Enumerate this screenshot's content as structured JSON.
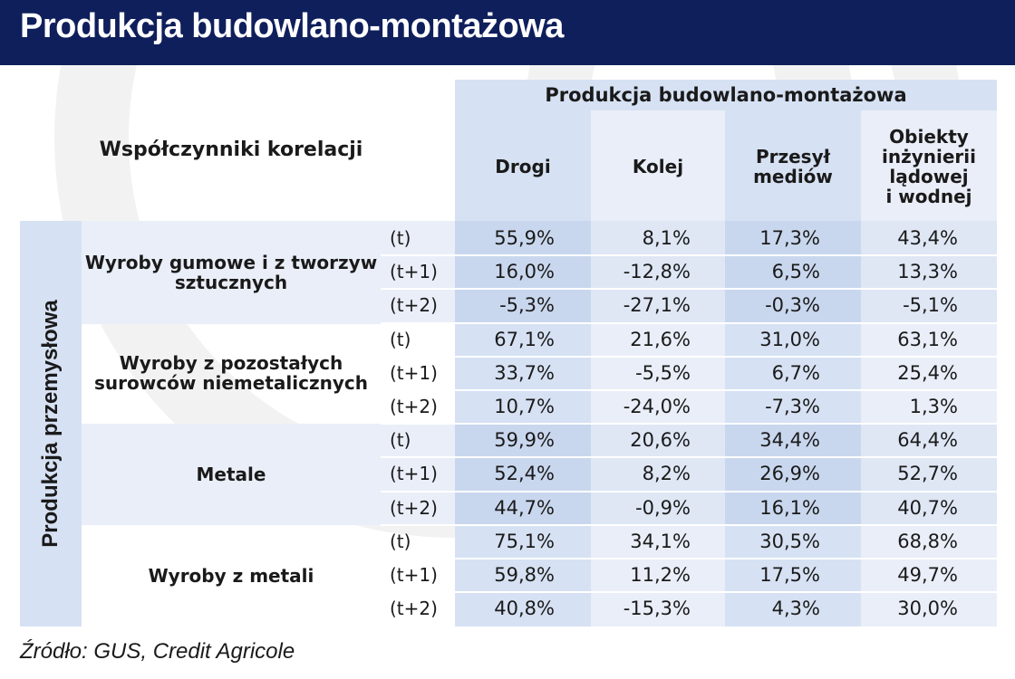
{
  "title": "Produkcja budowlano-montażowa",
  "corner_label": "Współczynniki korelacji",
  "column_group": "Produkcja budowlano-montażowa",
  "columns": {
    "c1": "Drogi",
    "c2": "Kolej",
    "c3a": "Przesył",
    "c3b": "mediów",
    "c4a": "Obiekty",
    "c4b": "inżynierii",
    "c4c": "lądowej",
    "c4d": "i wodnej"
  },
  "row_group": "Produkcja przemysłowa",
  "groups": {
    "g1a": "Wyroby gumowe i z tworzyw",
    "g1b": "sztucznych",
    "g2a": "Wyroby z pozostałych",
    "g2b": "surowców niemetalicznych",
    "g3": "Metale",
    "g4": "Wyroby z metali"
  },
  "periods": [
    "(t)",
    "(t+1)",
    "(t+2)",
    "(t)",
    "(t+1)",
    "(t+2)",
    "(t)",
    "(t+1)",
    "(t+2)",
    "(t)",
    "(t+1)",
    "(t+2)"
  ],
  "source": "Źródło: GUS, Credit Agricole",
  "colors": {
    "header_bar": "#0f1f5c",
    "light_band": "#e9eef8",
    "mid_band": "#d6e1f3"
  },
  "chart_data": {
    "type": "table",
    "title": "Produkcja budowlano-montażowa",
    "columns": [
      "Drogi",
      "Kolej",
      "Przesył mediów",
      "Obiekty inżynierii lądowej i wodnej"
    ],
    "rows": [
      {
        "group": "Wyroby gumowe i z tworzyw sztucznych",
        "period": "(t)",
        "values": [
          "55,9%",
          "8,1%",
          "17,3%",
          "43,4%"
        ]
      },
      {
        "group": "Wyroby gumowe i z tworzyw sztucznych",
        "period": "(t+1)",
        "values": [
          "16,0%",
          "-12,8%",
          "6,5%",
          "13,3%"
        ]
      },
      {
        "group": "Wyroby gumowe i z tworzyw sztucznych",
        "period": "(t+2)",
        "values": [
          "-5,3%",
          "-27,1%",
          "-0,3%",
          "-5,1%"
        ]
      },
      {
        "group": "Wyroby z pozostałych surowców niemetalicznych",
        "period": "(t)",
        "values": [
          "67,1%",
          "21,6%",
          "31,0%",
          "63,1%"
        ]
      },
      {
        "group": "Wyroby z pozostałych surowców niemetalicznych",
        "period": "(t+1)",
        "values": [
          "33,7%",
          "-5,5%",
          "6,7%",
          "25,4%"
        ]
      },
      {
        "group": "Wyroby z pozostałych surowców niemetalicznych",
        "period": "(t+2)",
        "values": [
          "10,7%",
          "-24,0%",
          "-7,3%",
          "1,3%"
        ]
      },
      {
        "group": "Metale",
        "period": "(t)",
        "values": [
          "59,9%",
          "20,6%",
          "34,4%",
          "64,4%"
        ]
      },
      {
        "group": "Metale",
        "period": "(t+1)",
        "values": [
          "52,4%",
          "8,2%",
          "26,9%",
          "52,7%"
        ]
      },
      {
        "group": "Metale",
        "period": "(t+2)",
        "values": [
          "44,7%",
          "-0,9%",
          "16,1%",
          "40,7%"
        ]
      },
      {
        "group": "Wyroby z metali",
        "period": "(t)",
        "values": [
          "75,1%",
          "34,1%",
          "30,5%",
          "68,8%"
        ]
      },
      {
        "group": "Wyroby z metali",
        "period": "(t+1)",
        "values": [
          "59,8%",
          "11,2%",
          "17,5%",
          "49,7%"
        ]
      },
      {
        "group": "Wyroby z metali",
        "period": "(t+2)",
        "values": [
          "40,8%",
          "-15,3%",
          "4,3%",
          "30,0%"
        ]
      }
    ]
  }
}
